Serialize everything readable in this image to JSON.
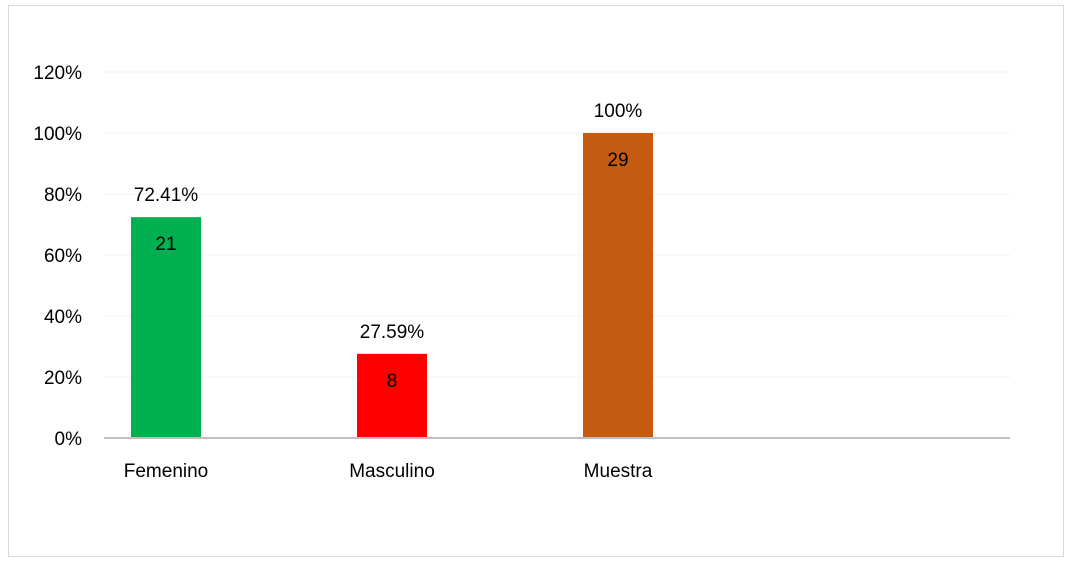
{
  "chart_data": {
    "type": "bar",
    "categories": [
      "Femenino",
      "Masculino",
      "Muestra"
    ],
    "values": [
      72.41,
      27.59,
      100
    ],
    "percent_labels": [
      "72.41%",
      "27.59%",
      "100%"
    ],
    "count_labels": [
      "21",
      "8",
      "29"
    ],
    "colors": [
      "#00b050",
      "#ff0000",
      "#c55a11"
    ],
    "ylim": [
      0,
      120
    ],
    "yticks": [
      0,
      20,
      40,
      60,
      80,
      100,
      120
    ],
    "ytick_labels": [
      "0%",
      "20%",
      "40%",
      "60%",
      "80%",
      "100%",
      "120%"
    ],
    "title": "",
    "xlabel": "",
    "ylabel": "",
    "grid": true,
    "gridline_color": "#f0f0f0",
    "axis_color": "#bfbfbf"
  }
}
